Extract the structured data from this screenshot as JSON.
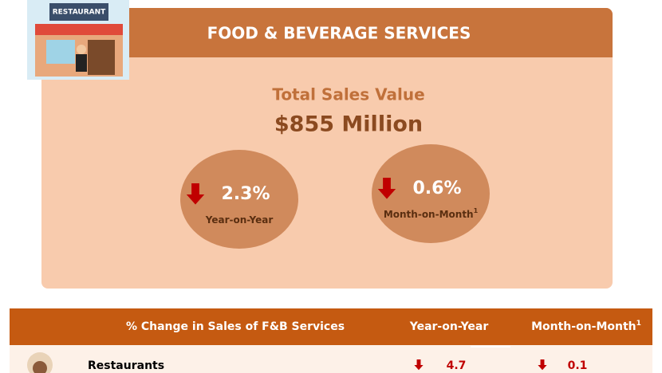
{
  "icon": {
    "sign": "RESTAURANT"
  },
  "panel": {
    "title": "FOOD & BEVERAGE SERVICES",
    "subtitle": "Total Sales Value",
    "headline": "$855 Million",
    "metrics": [
      {
        "value": "2.3%",
        "label": "Year-on-Year",
        "direction": "down"
      },
      {
        "value": "0.6%",
        "label": "Month-on-Month",
        "note_mark": "1",
        "direction": "down"
      }
    ]
  },
  "table": {
    "header": [
      "% Change in Sales of F&B Services",
      "Year-on-Year",
      "Month-on-Month"
    ],
    "header_note_mark": "1",
    "rows": [
      {
        "name": "Restaurants",
        "cells": [
          {
            "value": "4.7",
            "direction": "down"
          },
          {
            "value": "0.1",
            "direction": "down"
          }
        ]
      }
    ]
  }
}
